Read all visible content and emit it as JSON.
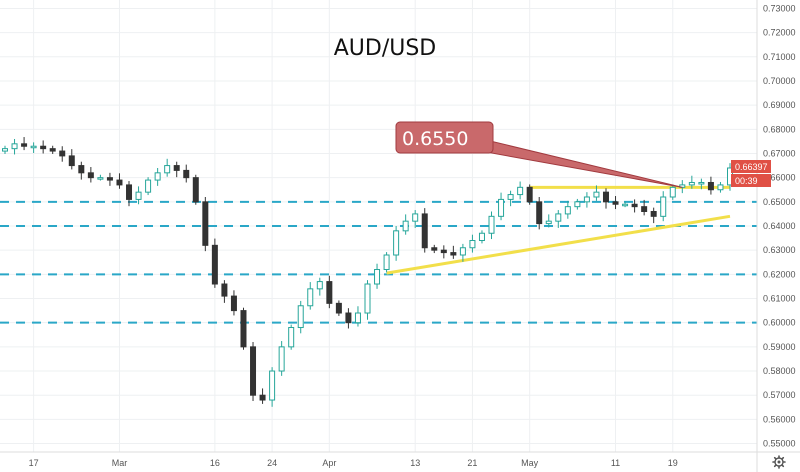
{
  "chart_data": {
    "type": "candlestick",
    "title": "AUD/USD",
    "ylim": [
      0.545,
      0.735
    ],
    "y_ticks": [
      "0.73000",
      "0.72000",
      "0.71000",
      "0.70000",
      "0.69000",
      "0.68000",
      "0.67000",
      "0.66000",
      "0.65000",
      "0.64000",
      "0.63000",
      "0.62000",
      "0.61000",
      "0.60000",
      "0.59000",
      "0.58000",
      "0.57000",
      "0.56000",
      "0.55000"
    ],
    "x_ticks": [
      {
        "label": "17",
        "i": 3
      },
      {
        "label": "Mar",
        "i": 12
      },
      {
        "label": "16",
        "i": 22
      },
      {
        "label": "24",
        "i": 28
      },
      {
        "label": "Apr",
        "i": 34
      },
      {
        "label": "13",
        "i": 43
      },
      {
        "label": "21",
        "i": 49
      },
      {
        "label": "May",
        "i": 55
      },
      {
        "label": "11",
        "i": 64
      },
      {
        "label": "19",
        "i": 70
      }
    ],
    "num_bars": 77,
    "series": [
      {
        "name": "",
        "values": [
          0.672,
          0.674,
          0.673,
          0.673,
          0.672,
          0.671,
          0.669,
          0.665,
          0.662,
          0.66,
          0.66,
          0.659,
          0.657,
          0.651,
          0.654,
          0.659,
          0.662,
          0.665,
          0.663,
          0.66,
          0.65,
          0.632,
          0.616,
          0.611,
          0.605,
          0.59,
          0.57,
          0.568,
          0.58,
          0.59,
          0.598,
          0.607,
          0.614,
          0.617,
          0.608,
          0.604,
          0.6,
          0.604,
          0.616,
          0.622,
          0.628,
          0.638,
          0.642,
          0.645,
          0.631,
          0.63,
          0.629,
          0.628,
          0.631,
          0.634,
          0.637,
          0.644,
          0.651,
          0.653,
          0.656,
          0.65,
          0.641,
          0.642,
          0.645,
          0.648,
          0.65,
          0.652,
          0.654,
          0.65,
          0.649,
          0.649,
          0.648,
          0.646,
          0.644,
          0.652,
          0.656,
          0.657,
          0.658,
          0.658,
          0.655,
          0.657,
          0.664
        ]
      }
    ],
    "horizontal_levels": [
      0.65,
      0.64,
      0.62,
      0.6
    ],
    "trend_lines": [
      {
        "from": [
          55,
          0.656
        ],
        "to": [
          76,
          0.656
        ]
      },
      {
        "from": [
          40,
          0.6205
        ],
        "to": [
          76,
          0.644
        ]
      }
    ],
    "annotation": {
      "text": "0.6550",
      "target": [
        71,
        0.656
      ]
    },
    "price_tag": "0.66397",
    "timer_tag": "00:39"
  },
  "colors": {
    "up": "#26a69a",
    "down": "#333333",
    "level": "#2aa7c7",
    "trend": "#f2df4a",
    "callout_fill": "#c9696b",
    "callout_stroke": "#a13a3f",
    "tag": "#e05045"
  },
  "footer": {
    "settings_icon": "gear-icon"
  }
}
